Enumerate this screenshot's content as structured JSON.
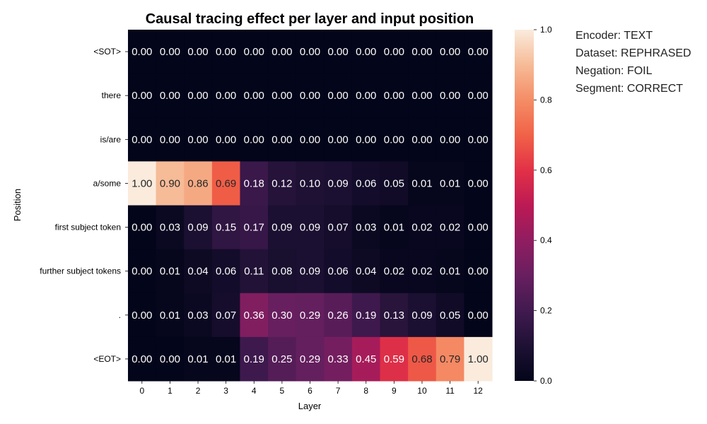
{
  "chart_data": {
    "type": "heatmap",
    "title": "Causal tracing effect per layer and input position",
    "xlabel": "Layer",
    "ylabel": "Position",
    "x_categories": [
      "0",
      "1",
      "2",
      "3",
      "4",
      "5",
      "6",
      "7",
      "8",
      "9",
      "10",
      "11",
      "12"
    ],
    "y_categories": [
      "<SOT>",
      "there",
      "is/are",
      "a/some",
      "first subject token",
      "further subject tokens",
      ".",
      "<EOT>"
    ],
    "values": [
      [
        0.0,
        0.0,
        0.0,
        0.0,
        0.0,
        0.0,
        0.0,
        0.0,
        0.0,
        0.0,
        0.0,
        0.0,
        0.0
      ],
      [
        0.0,
        0.0,
        0.0,
        0.0,
        0.0,
        0.0,
        0.0,
        0.0,
        0.0,
        0.0,
        0.0,
        0.0,
        0.0
      ],
      [
        0.0,
        0.0,
        0.0,
        0.0,
        0.0,
        0.0,
        0.0,
        0.0,
        0.0,
        0.0,
        0.0,
        0.0,
        0.0
      ],
      [
        1.0,
        0.9,
        0.86,
        0.69,
        0.18,
        0.12,
        0.1,
        0.09,
        0.06,
        0.05,
        0.01,
        0.01,
        0.0
      ],
      [
        0.0,
        0.03,
        0.09,
        0.15,
        0.17,
        0.09,
        0.09,
        0.07,
        0.03,
        0.01,
        0.02,
        0.02,
        0.0
      ],
      [
        0.0,
        0.01,
        0.04,
        0.06,
        0.11,
        0.08,
        0.09,
        0.06,
        0.04,
        0.02,
        0.02,
        0.01,
        0.0
      ],
      [
        0.0,
        0.01,
        0.03,
        0.07,
        0.36,
        0.3,
        0.29,
        0.26,
        0.19,
        0.13,
        0.09,
        0.05,
        0.0
      ],
      [
        0.0,
        0.0,
        0.01,
        0.01,
        0.19,
        0.25,
        0.29,
        0.33,
        0.45,
        0.59,
        0.68,
        0.79,
        1.0
      ]
    ],
    "colorbar": {
      "colormap": "rocket",
      "range": [
        0.0,
        1.0
      ],
      "ticks": [
        "0.0",
        "0.2",
        "0.4",
        "0.6",
        "0.8",
        "1.0"
      ]
    }
  },
  "info": {
    "lines": [
      "Encoder: TEXT",
      "Dataset: REPHRASED",
      "Negation: FOIL",
      "Segment: CORRECT"
    ]
  }
}
